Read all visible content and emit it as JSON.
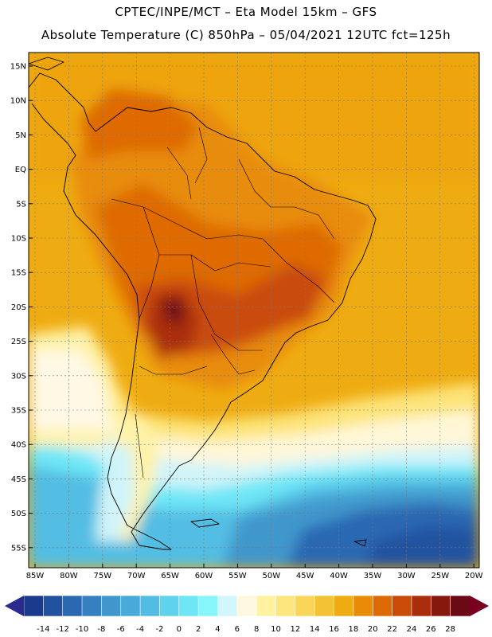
{
  "header": {
    "line1": "CPTEC/INPE/MCT –  Eta Model 15km – GFS",
    "line2": "Absolute Temperature (C) 850hPa – 05/04/2021 12UTC fct=125h"
  },
  "map": {
    "lat_labels": [
      "15N",
      "10N",
      "5N",
      "EQ",
      "5S",
      "10S",
      "15S",
      "20S",
      "25S",
      "30S",
      "35S",
      "40S",
      "45S",
      "50S",
      "55S"
    ],
    "lon_labels": [
      "85W",
      "80W",
      "75W",
      "70W",
      "65W",
      "60W",
      "55W",
      "50W",
      "45W",
      "40W",
      "35W",
      "30W",
      "25W",
      "20W"
    ]
  },
  "colorbar": {
    "labels": [
      "-14",
      "-12",
      "-10",
      "-8",
      "-6",
      "-4",
      "-2",
      "0",
      "2",
      "4",
      "6",
      "8",
      "10",
      "12",
      "14",
      "16",
      "18",
      "20",
      "22",
      "24",
      "26",
      "28"
    ],
    "colors": [
      "#1a3b8c",
      "#2052a0",
      "#2a68b2",
      "#3580c0",
      "#3f97cc",
      "#48aad8",
      "#52bde3",
      "#5fd2ee",
      "#6ee6f6",
      "#86f6fa",
      "#d2f6fb",
      "#fff8e0",
      "#fff2a0",
      "#fde67d",
      "#f9d65a",
      "#f3c235",
      "#eeab12",
      "#e88c07",
      "#de6a06",
      "#c94b08",
      "#aa2e0c",
      "#86190f",
      "#6a0a14"
    ],
    "left_end_color": "#2a2a8f",
    "right_end_color": "#7a0020"
  }
}
